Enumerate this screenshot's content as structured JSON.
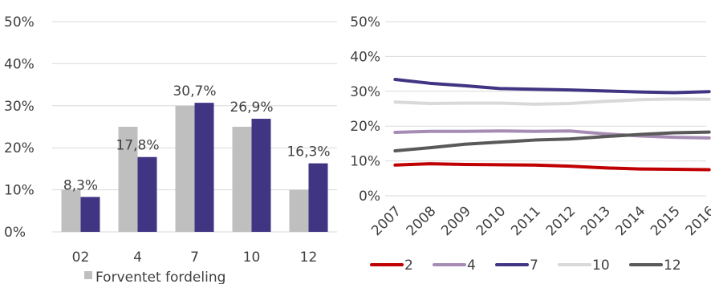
{
  "chart_data": [
    {
      "type": "bar",
      "categories": [
        "02",
        "4",
        "7",
        "10",
        "12"
      ],
      "series": [
        {
          "name": "Forventet fordeling",
          "values": [
            10,
            25,
            30,
            25,
            10
          ],
          "color": "#bfbfbf"
        },
        {
          "values": [
            8.3,
            17.8,
            30.7,
            26.9,
            16.3
          ],
          "color": "#3f3582"
        }
      ],
      "data_labels": [
        "8,3%",
        "17,8%",
        "30,7%",
        "26,9%",
        "16,3%"
      ],
      "yticks": [
        "0%",
        "10%",
        "20%",
        "30%",
        "40%",
        "50%"
      ],
      "ylim": [
        0,
        50
      ],
      "grid": true,
      "legend": "bottom"
    },
    {
      "type": "line",
      "x": [
        "2007",
        "2008",
        "2009",
        "2010",
        "2011",
        "2012",
        "2013",
        "2014",
        "2015",
        "2016"
      ],
      "series": [
        {
          "name": "2",
          "color": "#c00000",
          "values": [
            8.8,
            9.2,
            9.0,
            8.9,
            8.8,
            8.5,
            8.0,
            7.7,
            7.6,
            7.5
          ]
        },
        {
          "name": "4",
          "color": "#a68cb4",
          "values": [
            18.2,
            18.5,
            18.5,
            18.6,
            18.5,
            18.6,
            17.8,
            17.2,
            16.8,
            16.6
          ]
        },
        {
          "name": "7",
          "color": "#3f3582",
          "values": [
            33.4,
            32.3,
            31.6,
            30.8,
            30.6,
            30.4,
            30.1,
            29.8,
            29.6,
            29.9
          ]
        },
        {
          "name": "10",
          "color": "#d9d9d9",
          "values": [
            26.9,
            26.5,
            26.6,
            26.6,
            26.3,
            26.5,
            27.1,
            27.6,
            27.8,
            27.7
          ]
        },
        {
          "name": "12",
          "color": "#595959",
          "values": [
            12.9,
            13.8,
            14.8,
            15.4,
            16.0,
            16.3,
            17.0,
            17.6,
            18.1,
            18.3
          ]
        }
      ],
      "yticks": [
        "0%",
        "10%",
        "20%",
        "30%",
        "40%",
        "50%"
      ],
      "ylim": [
        0,
        50
      ],
      "grid": true,
      "legend": "bottom"
    }
  ]
}
